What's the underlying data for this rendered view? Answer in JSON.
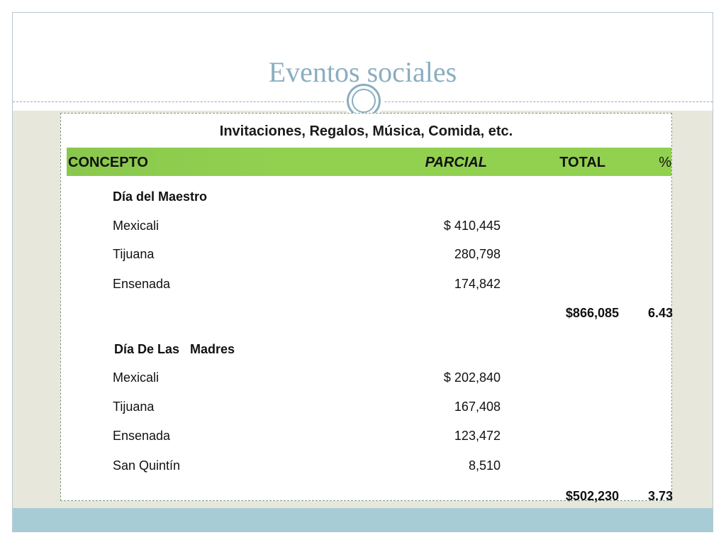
{
  "slide": {
    "title": "Eventos sociales",
    "subtitle": "Invitaciones, Regalos, Música, Comida, etc."
  },
  "table": {
    "headers": {
      "concepto": "CONCEPTO",
      "parcial": "PARCIAL",
      "total": "TOTAL",
      "percent": "%"
    },
    "sections": [
      {
        "name": "Día del Maestro",
        "rows": [
          {
            "label": "Mexicali",
            "parcial": "$ 410,445"
          },
          {
            "label": "Tijuana",
            "parcial": "280,798"
          },
          {
            "label": "Ensenada",
            "parcial": "174,842"
          }
        ],
        "total": "$866,085",
        "percent": "6.43"
      },
      {
        "name": "Día De Las   Madres",
        "rows": [
          {
            "label": "Mexicali",
            "parcial": "$ 202,840"
          },
          {
            "label": "Tijuana",
            "parcial": "167,408"
          },
          {
            "label": "Ensenada",
            "parcial": "123,472"
          },
          {
            "label": "San Quintín",
            "parcial": "8,510"
          }
        ],
        "total": "$502,230",
        "percent": "3.73"
      }
    ]
  },
  "colors": {
    "title": "#8aaec0",
    "header_green": "#92d050",
    "body_background": "#e8e7dc",
    "footer_band": "#a8ccd5"
  }
}
